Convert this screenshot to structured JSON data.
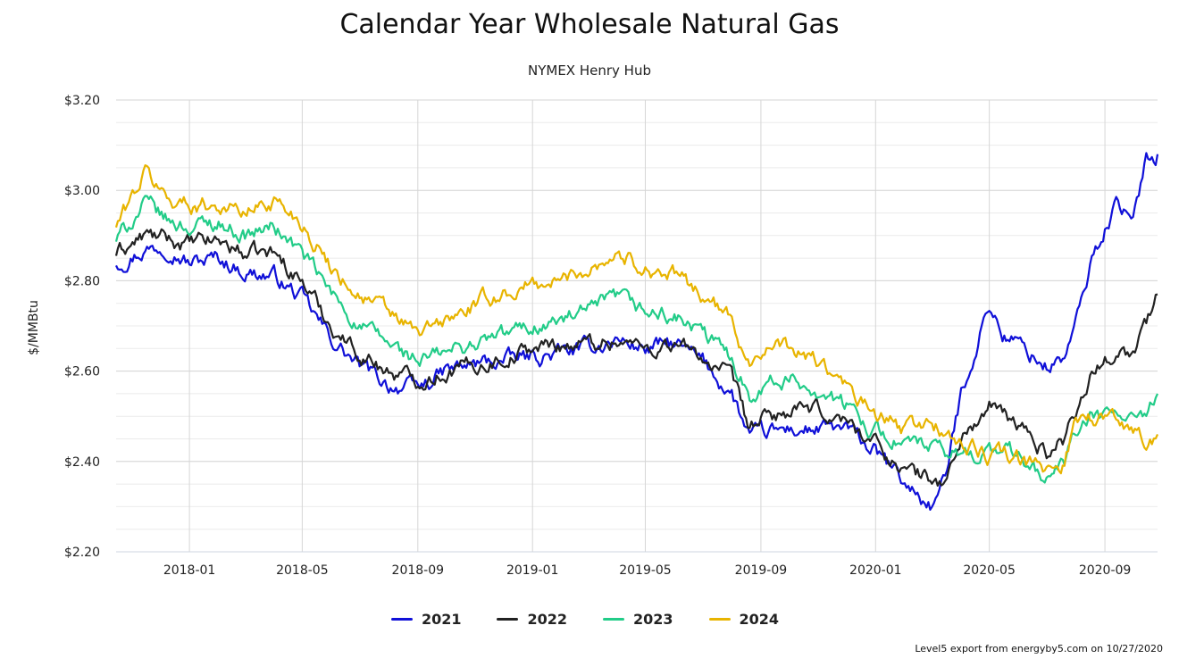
{
  "chart_data": {
    "type": "line",
    "title": "Calendar Year Wholesale Natural Gas",
    "subtitle": "NYMEX Henry Hub",
    "ylabel": "$/MMBtu",
    "ylim": [
      2.2,
      3.2
    ],
    "y_ticks": [
      2.2,
      2.4,
      2.6,
      2.8,
      3.0,
      3.2
    ],
    "y_tick_labels": [
      "$2.20",
      "$2.40",
      "$2.60",
      "$2.80",
      "$3.00",
      "$3.20"
    ],
    "xlim": [
      "2017-10-15",
      "2020-10-27"
    ],
    "x_ticks": [
      "2018-01-01",
      "2018-05-01",
      "2018-09-01",
      "2019-01-01",
      "2019-05-01",
      "2019-09-01",
      "2020-01-01",
      "2020-05-01",
      "2020-09-01"
    ],
    "x_tick_labels": [
      "2018-01",
      "2018-05",
      "2018-09",
      "2019-01",
      "2019-05",
      "2019-09",
      "2020-01",
      "2020-05",
      "2020-09"
    ],
    "grid": true,
    "legend_position": "bottom-center",
    "series": [
      {
        "name": "2021",
        "color": "#1010d8",
        "points": [
          [
            "2017-10-15",
            2.84
          ],
          [
            "2017-11-15",
            2.87
          ],
          [
            "2017-12-10",
            2.88
          ],
          [
            "2018-01-01",
            2.84
          ],
          [
            "2018-02-01",
            2.85
          ],
          [
            "2018-03-01",
            2.82
          ],
          [
            "2018-04-01",
            2.81
          ],
          [
            "2018-05-01",
            2.76
          ],
          [
            "2018-06-01",
            2.67
          ],
          [
            "2018-07-01",
            2.61
          ],
          [
            "2018-08-01",
            2.57
          ],
          [
            "2018-09-01",
            2.56
          ],
          [
            "2018-10-01",
            2.6
          ],
          [
            "2018-11-15",
            2.62
          ],
          [
            "2019-01-01",
            2.63
          ],
          [
            "2019-02-01",
            2.64
          ],
          [
            "2019-03-01",
            2.65
          ],
          [
            "2019-04-01",
            2.67
          ],
          [
            "2019-05-01",
            2.65
          ],
          [
            "2019-06-01",
            2.66
          ],
          [
            "2019-07-01",
            2.62
          ],
          [
            "2019-08-01",
            2.55
          ],
          [
            "2019-08-20",
            2.45
          ],
          [
            "2019-09-01",
            2.46
          ],
          [
            "2019-10-01",
            2.47
          ],
          [
            "2019-11-01",
            2.47
          ],
          [
            "2019-12-01",
            2.47
          ],
          [
            "2020-01-01",
            2.42
          ],
          [
            "2020-02-01",
            2.35
          ],
          [
            "2020-03-01",
            2.3
          ],
          [
            "2020-03-15",
            2.36
          ],
          [
            "2020-04-01",
            2.55
          ],
          [
            "2020-05-01",
            2.75
          ],
          [
            "2020-05-15",
            2.68
          ],
          [
            "2020-06-01",
            2.66
          ],
          [
            "2020-07-01",
            2.61
          ],
          [
            "2020-07-20",
            2.63
          ],
          [
            "2020-08-01",
            2.7
          ],
          [
            "2020-08-20",
            2.86
          ],
          [
            "2020-09-15",
            2.98
          ],
          [
            "2020-10-01",
            2.92
          ],
          [
            "2020-10-15",
            3.08
          ],
          [
            "2020-10-27",
            3.08
          ]
        ]
      },
      {
        "name": "2022",
        "color": "#222222",
        "points": [
          [
            "2017-10-15",
            2.86
          ],
          [
            "2017-11-15",
            2.9
          ],
          [
            "2017-12-10",
            2.89
          ],
          [
            "2018-01-01",
            2.88
          ],
          [
            "2018-02-01",
            2.89
          ],
          [
            "2018-03-01",
            2.86
          ],
          [
            "2018-04-01",
            2.86
          ],
          [
            "2018-05-01",
            2.8
          ],
          [
            "2018-06-01",
            2.7
          ],
          [
            "2018-07-01",
            2.64
          ],
          [
            "2018-08-01",
            2.6
          ],
          [
            "2018-09-01",
            2.58
          ],
          [
            "2018-10-01",
            2.6
          ],
          [
            "2018-11-15",
            2.62
          ],
          [
            "2019-01-01",
            2.65
          ],
          [
            "2019-02-01",
            2.66
          ],
          [
            "2019-03-01",
            2.66
          ],
          [
            "2019-04-01",
            2.67
          ],
          [
            "2019-05-01",
            2.65
          ],
          [
            "2019-06-01",
            2.66
          ],
          [
            "2019-07-01",
            2.63
          ],
          [
            "2019-08-01",
            2.58
          ],
          [
            "2019-08-20",
            2.47
          ],
          [
            "2019-09-01",
            2.49
          ],
          [
            "2019-10-01",
            2.51
          ],
          [
            "2019-11-01",
            2.51
          ],
          [
            "2019-12-01",
            2.49
          ],
          [
            "2020-01-01",
            2.44
          ],
          [
            "2020-02-01",
            2.38
          ],
          [
            "2020-03-01",
            2.36
          ],
          [
            "2020-03-15",
            2.35
          ],
          [
            "2020-04-01",
            2.45
          ],
          [
            "2020-05-01",
            2.52
          ],
          [
            "2020-05-15",
            2.5
          ],
          [
            "2020-06-01",
            2.48
          ],
          [
            "2020-07-01",
            2.42
          ],
          [
            "2020-07-20",
            2.45
          ],
          [
            "2020-08-01",
            2.52
          ],
          [
            "2020-08-20",
            2.6
          ],
          [
            "2020-09-15",
            2.65
          ],
          [
            "2020-10-01",
            2.64
          ],
          [
            "2020-10-15",
            2.7
          ],
          [
            "2020-10-27",
            2.77
          ]
        ]
      },
      {
        "name": "2023",
        "color": "#22cc88",
        "points": [
          [
            "2017-10-15",
            2.89
          ],
          [
            "2017-11-15",
            2.97
          ],
          [
            "2017-12-10",
            2.93
          ],
          [
            "2018-01-01",
            2.92
          ],
          [
            "2018-02-01",
            2.93
          ],
          [
            "2018-03-01",
            2.9
          ],
          [
            "2018-04-01",
            2.92
          ],
          [
            "2018-05-01",
            2.86
          ],
          [
            "2018-06-01",
            2.77
          ],
          [
            "2018-07-01",
            2.7
          ],
          [
            "2018-08-01",
            2.66
          ],
          [
            "2018-09-01",
            2.62
          ],
          [
            "2018-10-01",
            2.64
          ],
          [
            "2018-11-15",
            2.67
          ],
          [
            "2019-01-01",
            2.7
          ],
          [
            "2019-02-01",
            2.71
          ],
          [
            "2019-03-01",
            2.73
          ],
          [
            "2019-04-01",
            2.76
          ],
          [
            "2019-05-01",
            2.73
          ],
          [
            "2019-06-01",
            2.72
          ],
          [
            "2019-07-01",
            2.68
          ],
          [
            "2019-08-01",
            2.63
          ],
          [
            "2019-08-20",
            2.55
          ],
          [
            "2019-09-01",
            2.57
          ],
          [
            "2019-10-01",
            2.58
          ],
          [
            "2019-11-01",
            2.56
          ],
          [
            "2019-12-01",
            2.52
          ],
          [
            "2020-01-01",
            2.47
          ],
          [
            "2020-02-01",
            2.44
          ],
          [
            "2020-03-01",
            2.43
          ],
          [
            "2020-03-15",
            2.41
          ],
          [
            "2020-04-01",
            2.42
          ],
          [
            "2020-05-01",
            2.42
          ],
          [
            "2020-05-15",
            2.43
          ],
          [
            "2020-06-01",
            2.41
          ],
          [
            "2020-07-01",
            2.36
          ],
          [
            "2020-07-20",
            2.4
          ],
          [
            "2020-08-01",
            2.46
          ],
          [
            "2020-08-20",
            2.5
          ],
          [
            "2020-09-15",
            2.5
          ],
          [
            "2020-10-01",
            2.5
          ],
          [
            "2020-10-15",
            2.48
          ],
          [
            "2020-10-27",
            2.55
          ]
        ]
      },
      {
        "name": "2024",
        "color": "#e8b400",
        "points": [
          [
            "2017-10-15",
            2.92
          ],
          [
            "2017-11-15",
            3.04
          ],
          [
            "2017-12-10",
            2.98
          ],
          [
            "2018-01-01",
            2.97
          ],
          [
            "2018-02-01",
            2.97
          ],
          [
            "2018-03-01",
            2.95
          ],
          [
            "2018-04-01",
            2.98
          ],
          [
            "2018-05-01",
            2.93
          ],
          [
            "2018-06-01",
            2.83
          ],
          [
            "2018-07-01",
            2.77
          ],
          [
            "2018-08-01",
            2.73
          ],
          [
            "2018-09-01",
            2.68
          ],
          [
            "2018-10-01",
            2.71
          ],
          [
            "2018-11-15",
            2.76
          ],
          [
            "2019-01-01",
            2.79
          ],
          [
            "2019-02-01",
            2.8
          ],
          [
            "2019-03-01",
            2.83
          ],
          [
            "2019-04-01",
            2.86
          ],
          [
            "2019-05-01",
            2.83
          ],
          [
            "2019-06-01",
            2.81
          ],
          [
            "2019-07-01",
            2.77
          ],
          [
            "2019-08-01",
            2.71
          ],
          [
            "2019-08-20",
            2.62
          ],
          [
            "2019-09-01",
            2.65
          ],
          [
            "2019-10-01",
            2.65
          ],
          [
            "2019-11-01",
            2.62
          ],
          [
            "2019-12-01",
            2.56
          ],
          [
            "2020-01-01",
            2.5
          ],
          [
            "2020-02-01",
            2.47
          ],
          [
            "2020-03-01",
            2.49
          ],
          [
            "2020-03-15",
            2.46
          ],
          [
            "2020-04-01",
            2.44
          ],
          [
            "2020-05-01",
            2.41
          ],
          [
            "2020-05-15",
            2.42
          ],
          [
            "2020-06-01",
            2.4
          ],
          [
            "2020-07-01",
            2.38
          ],
          [
            "2020-07-20",
            2.4
          ],
          [
            "2020-08-01",
            2.5
          ],
          [
            "2020-08-20",
            2.5
          ],
          [
            "2020-09-15",
            2.49
          ],
          [
            "2020-10-01",
            2.47
          ],
          [
            "2020-10-15",
            2.45
          ],
          [
            "2020-10-27",
            2.46
          ]
        ]
      }
    ]
  },
  "credit": "Level5 export from energyby5.com on 10/27/2020"
}
